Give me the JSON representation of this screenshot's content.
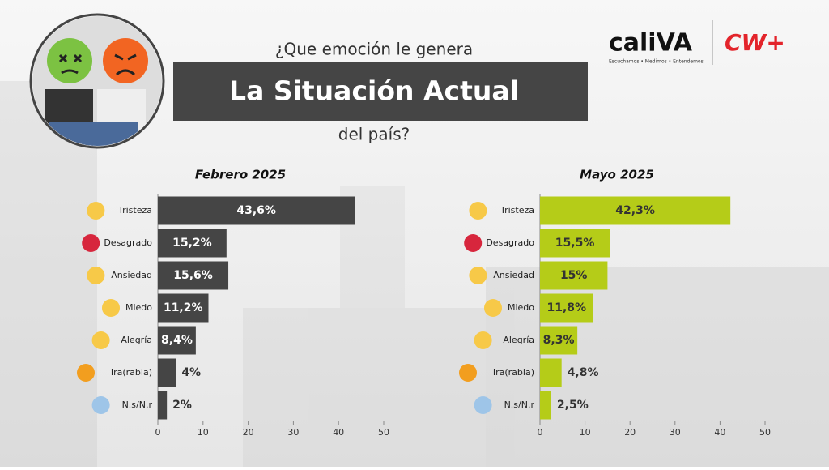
{
  "header": {
    "question_top": "¿Que emoción le genera",
    "title": "La Situación Actual",
    "question_bottom": "del país?"
  },
  "logos": {
    "brand": "caliVA",
    "tagline": "Escuchamos • Medimos • Entendemos",
    "partner": "CW+"
  },
  "chart_data": [
    {
      "type": "bar",
      "title": "Febrero 2025",
      "categories": [
        "Tristeza",
        "Desagrado",
        "Ansiedad",
        "Miedo",
        "Alegría",
        "Ira(rabia)",
        "N.s/N.r"
      ],
      "values": [
        43.6,
        15.2,
        15.6,
        11.2,
        8.4,
        4,
        2
      ],
      "value_labels": [
        "43,6%",
        "15,2%",
        "15,6%",
        "11,2%",
        "8,4%",
        "4%",
        "2%"
      ],
      "color": "#454545",
      "xlim": [
        0,
        50
      ],
      "xticks": [
        0,
        10,
        20,
        30,
        40,
        50
      ]
    },
    {
      "type": "bar",
      "title": "Mayo 2025",
      "categories": [
        "Tristeza",
        "Desagrado",
        "Ansiedad",
        "Miedo",
        "Alegría",
        "Ira(rabia)",
        "N.s/N.r"
      ],
      "values": [
        42.3,
        15.5,
        15,
        11.8,
        8.3,
        4.8,
        2.5
      ],
      "value_labels": [
        "42,3%",
        "15,5%",
        "15%",
        "11,8%",
        "8,3%",
        "4,8%",
        "2,5%"
      ],
      "color": "#b5cc18",
      "xlim": [
        0,
        50
      ],
      "xticks": [
        0,
        10,
        20,
        30,
        40,
        50
      ]
    }
  ]
}
